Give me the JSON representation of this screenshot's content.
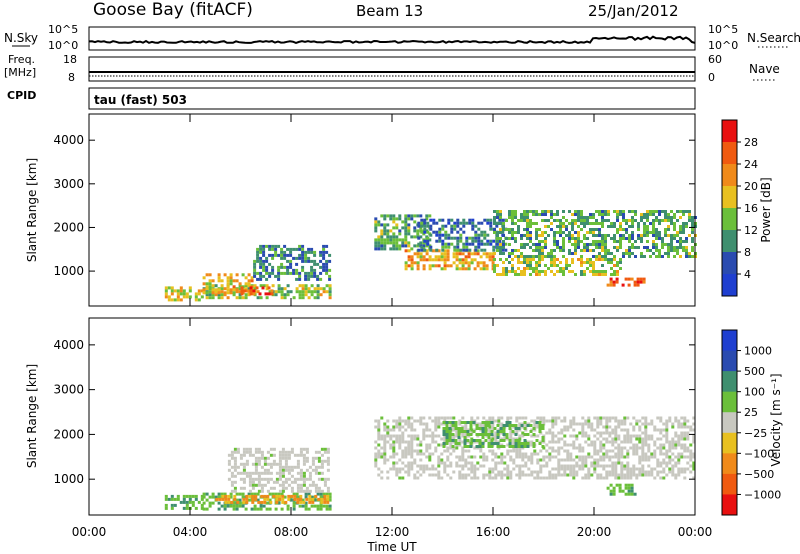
{
  "header": {
    "station": "Goose Bay (fitACF)",
    "beam": "Beam 13",
    "date": "25/Jan/2012"
  },
  "top_panels": {
    "nsky_label": "N.Sky",
    "nsky_ticks": [
      "10^5",
      "10^0"
    ],
    "nsearch_label": "N.Search",
    "nsearch_ticks": [
      "10^5",
      "10^0"
    ],
    "freq_label_1": "Freq.",
    "freq_label_2": "[MHz]",
    "freq_ticks": [
      "18",
      "8"
    ],
    "nave_label": "Nave",
    "nave_ticks": [
      "60",
      "0"
    ],
    "cpid_label": "CPID",
    "cpid_value": "tau (fast) 503"
  },
  "colors": {
    "power_scale": [
      "#1f3fd0",
      "#2a4bb0",
      "#3f8f6f",
      "#6bbf3a",
      "#e8c020",
      "#f08a1a",
      "#f05a10",
      "#e81010"
    ],
    "velocity_scale": [
      "#e81010",
      "#f05a10",
      "#f08a1a",
      "#e8c020",
      "#c8c8c0",
      "#6bbf3a",
      "#3f8f6f",
      "#2a4bb0",
      "#1f3fd0"
    ],
    "ground_scatter": "#c8c8c0"
  },
  "chart_data": [
    {
      "type": "heatmap",
      "name": "power",
      "ylabel": "Slant Range [km]",
      "colorbar_label": "Power [dB]",
      "colorbar_ticks": [
        "28",
        "24",
        "20",
        "16",
        "12",
        "8",
        "4"
      ],
      "colorbar_range": [
        0,
        32
      ],
      "ylim": [
        200,
        4600
      ],
      "yticks": [
        "4000",
        "3000",
        "2000",
        "1000"
      ],
      "ytick_values": [
        4000,
        3000,
        2000,
        1000
      ],
      "xlim": [
        0,
        24
      ],
      "regions": [
        {
          "t0": 3.0,
          "t1": 4.5,
          "r0": 350,
          "r1": 650,
          "v": 18
        },
        {
          "t0": 4.5,
          "t1": 9.5,
          "r0": 380,
          "r1": 700,
          "v": 16
        },
        {
          "t0": 4.5,
          "t1": 6.5,
          "r0": 500,
          "r1": 950,
          "v": 20
        },
        {
          "t0": 6.0,
          "t1": 7.2,
          "r0": 450,
          "r1": 650,
          "v": 27
        },
        {
          "t0": 6.5,
          "t1": 9.5,
          "r0": 800,
          "r1": 1600,
          "v": 9
        },
        {
          "t0": 11.3,
          "t1": 13.5,
          "r0": 1500,
          "r1": 2300,
          "v": 12
        },
        {
          "t0": 12.5,
          "t1": 16.0,
          "r0": 1050,
          "r1": 1500,
          "v": 20
        },
        {
          "t0": 13.0,
          "t1": 16.5,
          "r0": 1500,
          "r1": 2200,
          "v": 8
        },
        {
          "t0": 16.0,
          "t1": 21.0,
          "r0": 950,
          "r1": 1300,
          "v": 16
        },
        {
          "t0": 16.0,
          "t1": 24.0,
          "r0": 1300,
          "r1": 2400,
          "v": 12
        },
        {
          "t0": 20.5,
          "t1": 22.0,
          "r0": 650,
          "r1": 850,
          "v": 27
        }
      ]
    },
    {
      "type": "heatmap",
      "name": "velocity",
      "ylabel": "Slant Range [km]",
      "colorbar_label": "Velocity [m s⁻¹]",
      "colorbar_ticks": [
        "1000",
        "500",
        "100",
        "25",
        "−25",
        "−100",
        "−500",
        "−1000"
      ],
      "ylim": [
        200,
        4600
      ],
      "yticks": [
        "4000",
        "3000",
        "2000",
        "1000"
      ],
      "ytick_values": [
        4000,
        3000,
        2000,
        1000
      ],
      "xlim": [
        0,
        24
      ],
      "xlabel": "Time UT",
      "xticks": [
        "00:00",
        "04:00",
        "08:00",
        "12:00",
        "16:00",
        "20:00",
        "00:00"
      ],
      "xtick_values": [
        0,
        4,
        8,
        12,
        16,
        20,
        24
      ],
      "regions": [
        {
          "t0": 3.0,
          "t1": 4.5,
          "r0": 350,
          "r1": 650,
          "v": 150
        },
        {
          "t0": 4.5,
          "t1": 9.5,
          "r0": 350,
          "r1": 700,
          "v": 120
        },
        {
          "t0": 5.0,
          "t1": 9.5,
          "r0": 450,
          "r1": 650,
          "v": -80
        },
        {
          "t0": 5.5,
          "t1": 9.5,
          "r0": 700,
          "r1": 1700,
          "v": 0
        },
        {
          "t0": 11.3,
          "t1": 24.0,
          "r0": 1000,
          "r1": 2400,
          "v": 0
        },
        {
          "t0": 14.0,
          "t1": 18.0,
          "r0": 1700,
          "r1": 2300,
          "v": 120
        },
        {
          "t0": 20.5,
          "t1": 21.8,
          "r0": 650,
          "r1": 900,
          "v": 150
        }
      ]
    }
  ]
}
